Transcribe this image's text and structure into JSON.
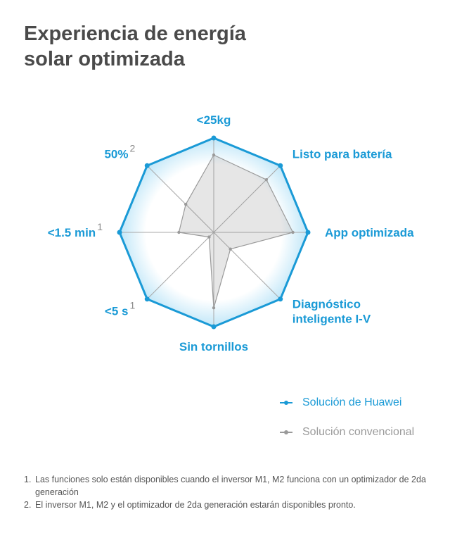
{
  "title": {
    "line1": "Experiencia de energía",
    "line2": "solar optimizada"
  },
  "chart_data": {
    "type": "radar",
    "axes": [
      {
        "label": "<25kg",
        "sup": ""
      },
      {
        "label": "Listo para batería",
        "sup": ""
      },
      {
        "label": "App optimizada",
        "sup": ""
      },
      {
        "label": "Diagnóstico|inteligente I-V",
        "sup": ""
      },
      {
        "label": "Sin tornillos",
        "sup": ""
      },
      {
        "label": "<5 s",
        "sup": "1"
      },
      {
        "label": "<1.5 min",
        "sup": "1"
      },
      {
        "label": "50%",
        "sup": "2"
      }
    ],
    "range": [
      0,
      1
    ],
    "series": [
      {
        "name": "Solución de Huawei",
        "color": "#1a9ad6",
        "values": [
          1,
          1,
          1,
          1,
          1,
          1,
          1,
          1
        ]
      },
      {
        "name": "Solución convencional",
        "color": "#9a9a9a",
        "values": [
          0.82,
          0.79,
          0.84,
          0.25,
          0.8,
          0.07,
          0.37,
          0.42
        ]
      }
    ]
  },
  "legend": {
    "huawei": "Solución de Huawei",
    "conventional": "Solución convencional"
  },
  "footnotes": [
    {
      "num": "1.",
      "text": "Las funciones solo están disponibles cuando el inversor M1, M2 funciona con un optimizador de 2da generación"
    },
    {
      "num": "2.",
      "text": "El inversor M1, M2 y el optimizador de 2da generación estarán disponibles pronto."
    }
  ]
}
